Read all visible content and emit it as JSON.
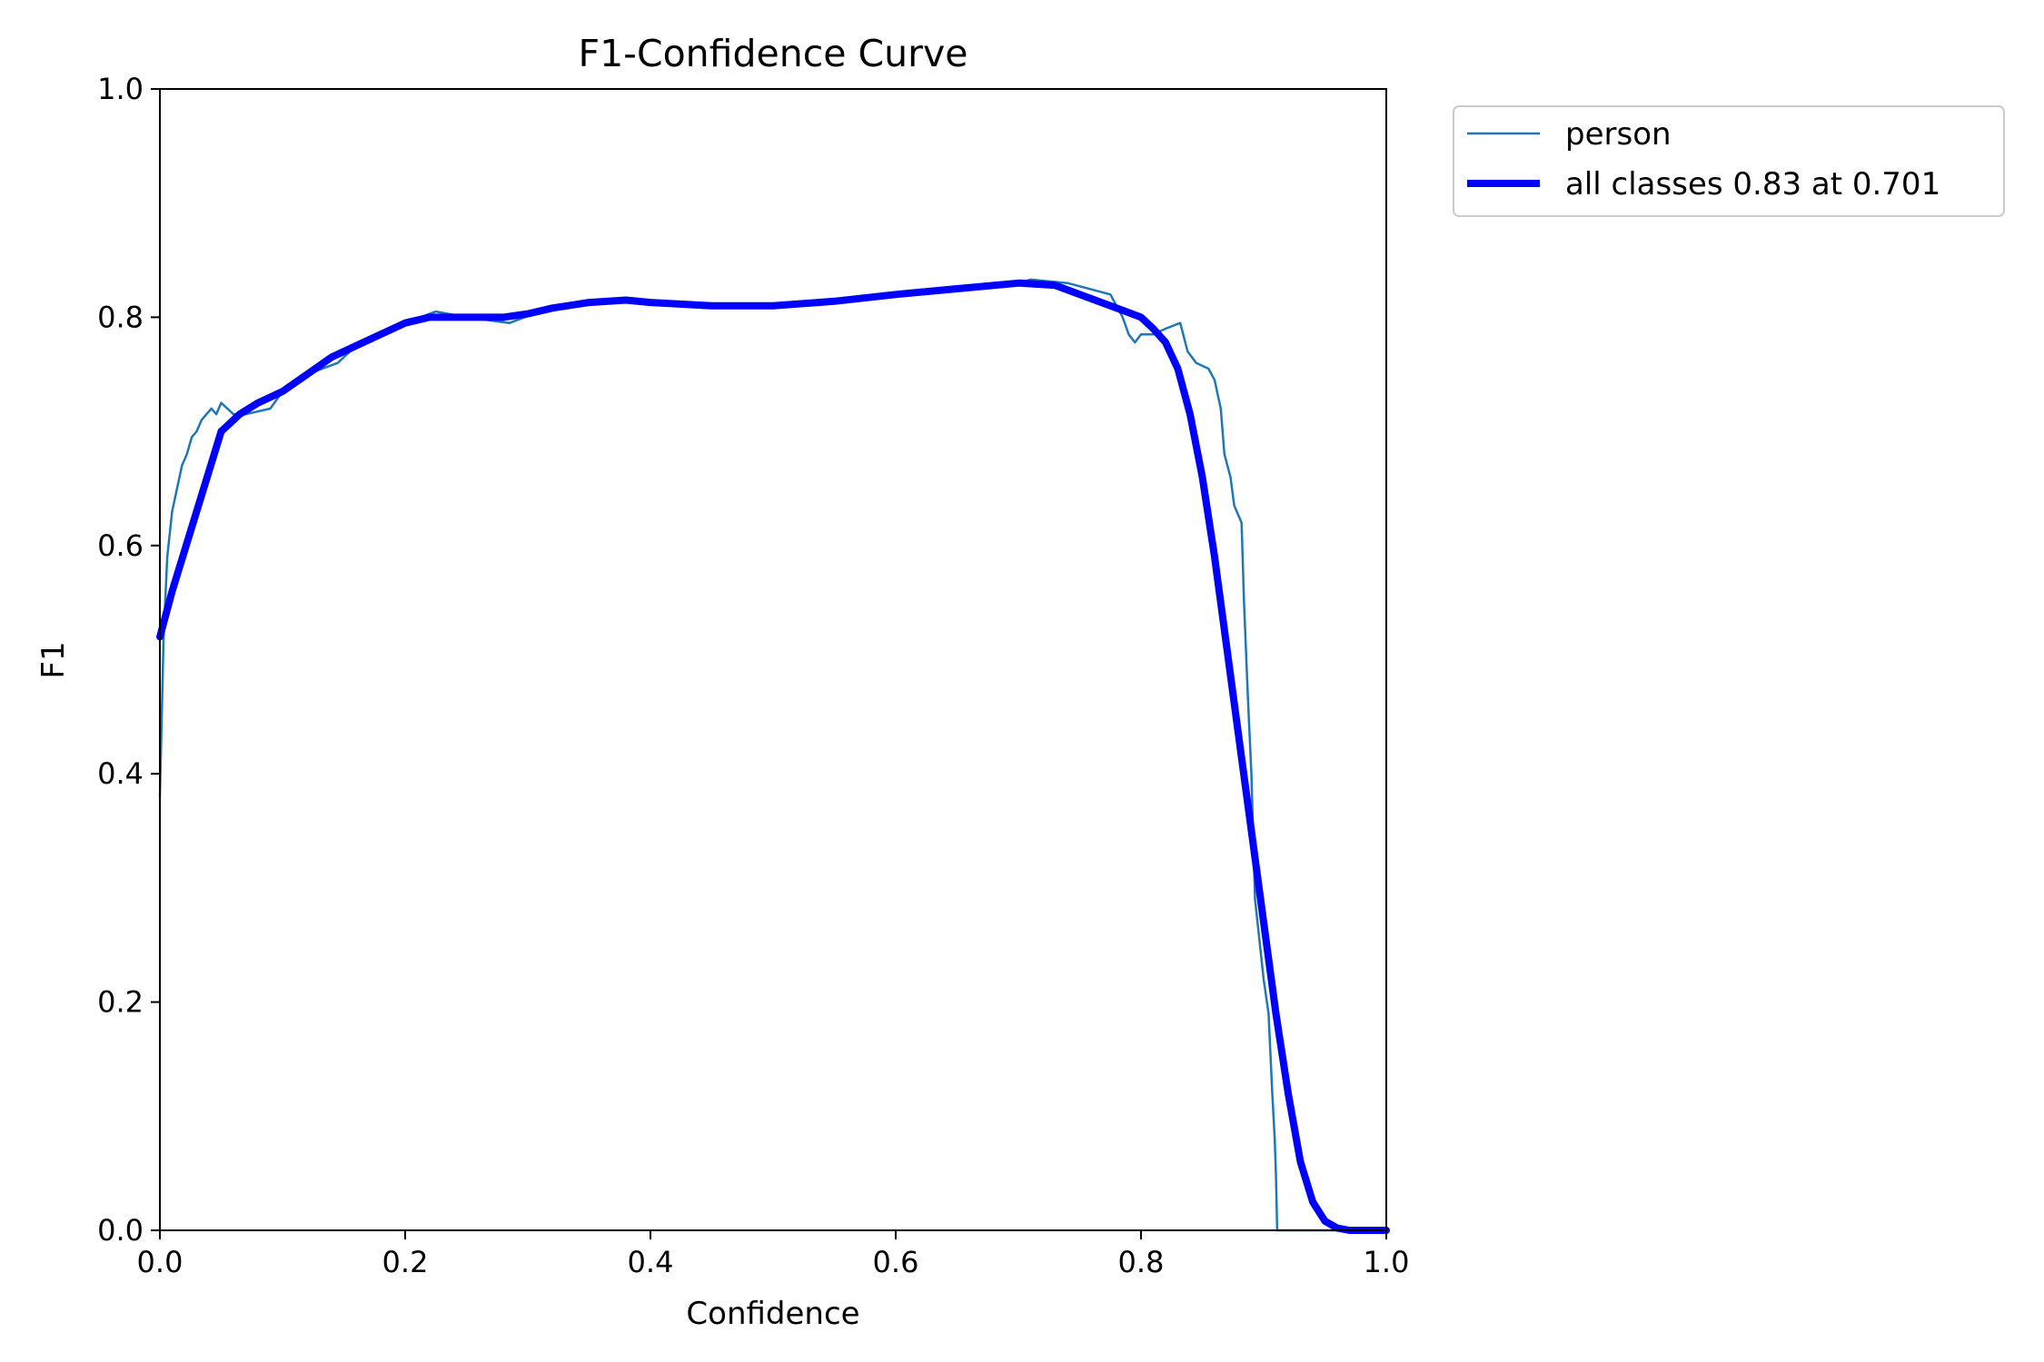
{
  "chart_data": {
    "type": "line",
    "title": "F1-Confidence Curve",
    "xlabel": "Confidence",
    "ylabel": "F1",
    "xlim": [
      0.0,
      1.0
    ],
    "ylim": [
      0.0,
      1.0
    ],
    "xticks": [
      "0.0",
      "0.2",
      "0.4",
      "0.6",
      "0.8",
      "1.0"
    ],
    "yticks": [
      "0.0",
      "0.2",
      "0.4",
      "0.6",
      "0.8",
      "1.0"
    ],
    "grid": false,
    "legend_position": "outside-top-right",
    "series": [
      {
        "name": "person",
        "color": "#1f77b4",
        "style": "thin",
        "points": [
          [
            0.0,
            0.38
          ],
          [
            0.003,
            0.52
          ],
          [
            0.006,
            0.59
          ],
          [
            0.01,
            0.63
          ],
          [
            0.014,
            0.65
          ],
          [
            0.018,
            0.67
          ],
          [
            0.022,
            0.68
          ],
          [
            0.026,
            0.695
          ],
          [
            0.03,
            0.7
          ],
          [
            0.034,
            0.71
          ],
          [
            0.038,
            0.715
          ],
          [
            0.042,
            0.72
          ],
          [
            0.046,
            0.715
          ],
          [
            0.05,
            0.725
          ],
          [
            0.055,
            0.72
          ],
          [
            0.06,
            0.715
          ],
          [
            0.07,
            0.715
          ],
          [
            0.09,
            0.72
          ],
          [
            0.1,
            0.735
          ],
          [
            0.12,
            0.75
          ],
          [
            0.145,
            0.76
          ],
          [
            0.16,
            0.775
          ],
          [
            0.18,
            0.785
          ],
          [
            0.2,
            0.795
          ],
          [
            0.225,
            0.805
          ],
          [
            0.25,
            0.8
          ],
          [
            0.285,
            0.795
          ],
          [
            0.31,
            0.805
          ],
          [
            0.34,
            0.81
          ],
          [
            0.36,
            0.815
          ],
          [
            0.39,
            0.815
          ],
          [
            0.42,
            0.81
          ],
          [
            0.445,
            0.808
          ],
          [
            0.5,
            0.81
          ],
          [
            0.55,
            0.815
          ],
          [
            0.6,
            0.82
          ],
          [
            0.65,
            0.825
          ],
          [
            0.7,
            0.83
          ],
          [
            0.71,
            0.833
          ],
          [
            0.74,
            0.83
          ],
          [
            0.775,
            0.82
          ],
          [
            0.785,
            0.8
          ],
          [
            0.79,
            0.785
          ],
          [
            0.795,
            0.778
          ],
          [
            0.8,
            0.785
          ],
          [
            0.81,
            0.785
          ],
          [
            0.82,
            0.79
          ],
          [
            0.832,
            0.795
          ],
          [
            0.838,
            0.77
          ],
          [
            0.845,
            0.76
          ],
          [
            0.855,
            0.755
          ],
          [
            0.86,
            0.745
          ],
          [
            0.865,
            0.72
          ],
          [
            0.868,
            0.68
          ],
          [
            0.873,
            0.66
          ],
          [
            0.876,
            0.635
          ],
          [
            0.882,
            0.62
          ],
          [
            0.884,
            0.55
          ],
          [
            0.887,
            0.47
          ],
          [
            0.89,
            0.4
          ],
          [
            0.893,
            0.29
          ],
          [
            0.896,
            0.26
          ],
          [
            0.9,
            0.22
          ],
          [
            0.904,
            0.19
          ],
          [
            0.907,
            0.12
          ],
          [
            0.909,
            0.08
          ],
          [
            0.91,
            0.05
          ],
          [
            0.911,
            0.0
          ],
          [
            1.0,
            0.0
          ]
        ]
      },
      {
        "name": "all classes 0.83 at 0.701",
        "color": "#0000ff",
        "style": "thick",
        "points": [
          [
            0.0,
            0.52
          ],
          [
            0.01,
            0.56
          ],
          [
            0.02,
            0.595
          ],
          [
            0.03,
            0.63
          ],
          [
            0.04,
            0.665
          ],
          [
            0.05,
            0.7
          ],
          [
            0.055,
            0.705
          ],
          [
            0.065,
            0.715
          ],
          [
            0.08,
            0.725
          ],
          [
            0.1,
            0.735
          ],
          [
            0.12,
            0.75
          ],
          [
            0.14,
            0.765
          ],
          [
            0.16,
            0.775
          ],
          [
            0.18,
            0.785
          ],
          [
            0.2,
            0.795
          ],
          [
            0.22,
            0.8
          ],
          [
            0.25,
            0.8
          ],
          [
            0.28,
            0.8
          ],
          [
            0.3,
            0.803
          ],
          [
            0.32,
            0.808
          ],
          [
            0.35,
            0.813
          ],
          [
            0.38,
            0.815
          ],
          [
            0.4,
            0.813
          ],
          [
            0.45,
            0.81
          ],
          [
            0.5,
            0.81
          ],
          [
            0.55,
            0.814
          ],
          [
            0.6,
            0.82
          ],
          [
            0.65,
            0.825
          ],
          [
            0.701,
            0.83
          ],
          [
            0.73,
            0.828
          ],
          [
            0.75,
            0.82
          ],
          [
            0.78,
            0.808
          ],
          [
            0.8,
            0.8
          ],
          [
            0.81,
            0.79
          ],
          [
            0.82,
            0.778
          ],
          [
            0.83,
            0.755
          ],
          [
            0.84,
            0.715
          ],
          [
            0.85,
            0.66
          ],
          [
            0.86,
            0.59
          ],
          [
            0.87,
            0.51
          ],
          [
            0.88,
            0.43
          ],
          [
            0.89,
            0.35
          ],
          [
            0.9,
            0.27
          ],
          [
            0.91,
            0.19
          ],
          [
            0.92,
            0.12
          ],
          [
            0.93,
            0.06
          ],
          [
            0.94,
            0.025
          ],
          [
            0.95,
            0.008
          ],
          [
            0.96,
            0.002
          ],
          [
            0.97,
            0.0
          ],
          [
            1.0,
            0.0
          ]
        ]
      }
    ]
  }
}
